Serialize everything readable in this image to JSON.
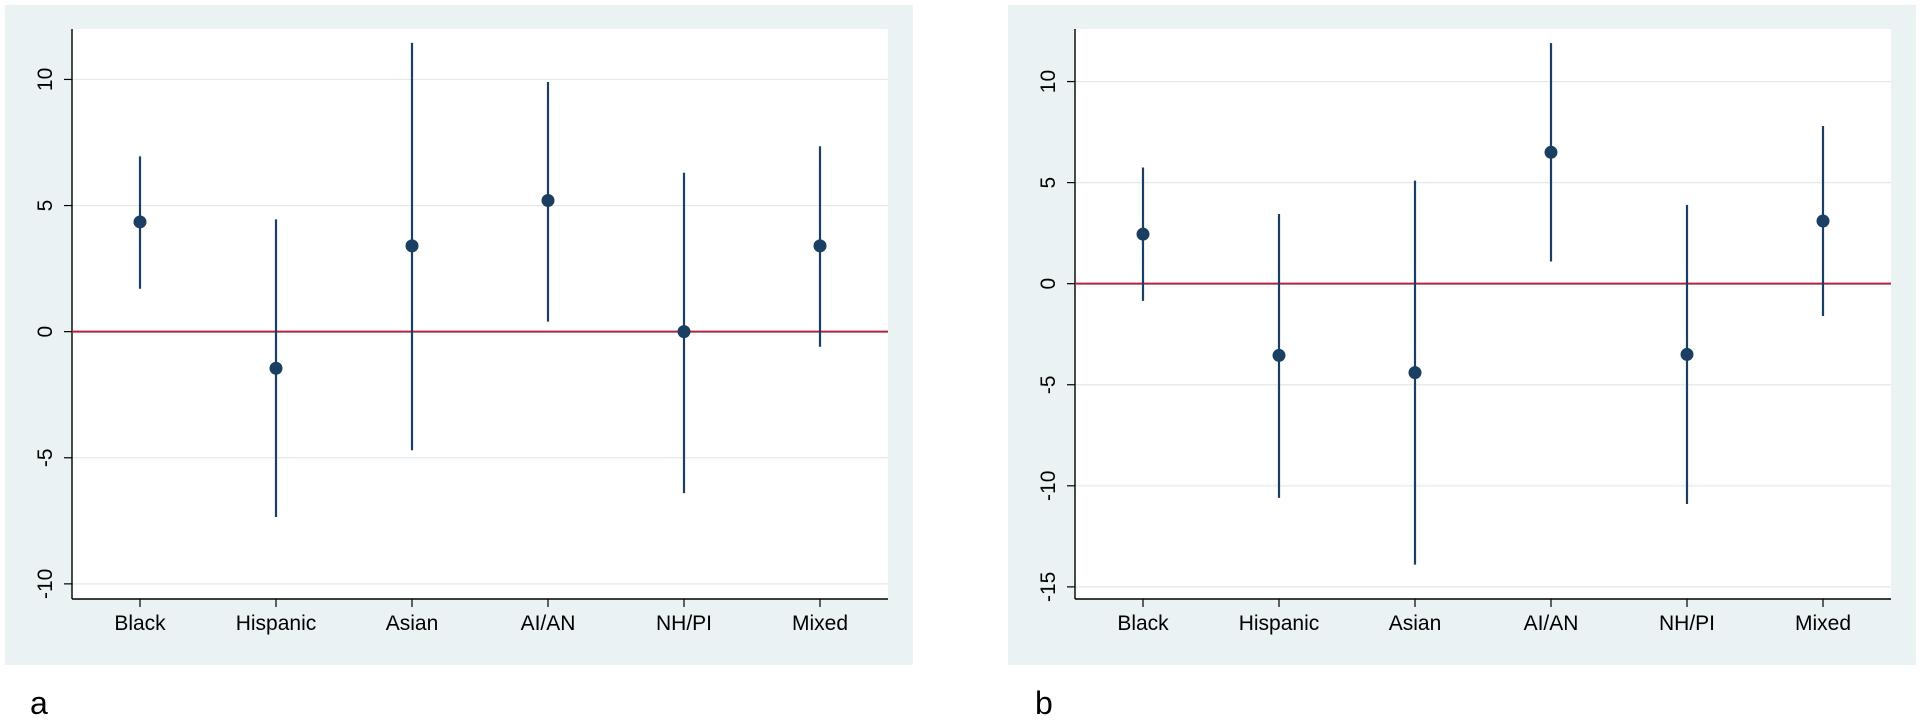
{
  "chart_data": [
    {
      "type": "scatter",
      "panel_label": "a",
      "categories": [
        "Black",
        "Hispanic",
        "Asian",
        "AI/AN",
        "NH/PI",
        "Mixed"
      ],
      "estimates": [
        4.35,
        -1.45,
        3.4,
        5.2,
        0.0,
        3.4
      ],
      "ci_lower": [
        1.7,
        -7.35,
        -4.7,
        0.4,
        -6.4,
        -0.6
      ],
      "ci_upper": [
        6.95,
        4.45,
        11.45,
        9.9,
        6.3,
        7.35
      ],
      "reference_line": 0,
      "yticks": [
        -10,
        -5,
        0,
        5,
        10
      ],
      "ylim": [
        -10.6,
        12.0
      ],
      "title": "",
      "xlabel": "",
      "ylabel": "",
      "colors": {
        "marker": "#1b3f63",
        "reference": "#b0233f",
        "grid": "#e3e9eb",
        "background": "#eaf2f3",
        "plot": "#ffffff"
      }
    },
    {
      "type": "scatter",
      "panel_label": "b",
      "categories": [
        "Black",
        "Hispanic",
        "Asian",
        "AI/AN",
        "NH/PI",
        "Mixed"
      ],
      "estimates": [
        2.45,
        -3.55,
        -4.4,
        6.5,
        -3.5,
        3.1
      ],
      "ci_lower": [
        -0.85,
        -10.6,
        -13.9,
        1.1,
        -10.9,
        -1.6
      ],
      "ci_upper": [
        5.75,
        3.45,
        5.1,
        11.9,
        3.9,
        7.8
      ],
      "reference_line": 0,
      "yticks": [
        -15,
        -10,
        -5,
        0,
        5,
        10
      ],
      "ylim": [
        -15.6,
        12.6
      ],
      "title": "",
      "xlabel": "",
      "ylabel": "",
      "colors": {
        "marker": "#1b3f63",
        "reference": "#b0233f",
        "grid": "#e3e9eb",
        "background": "#eaf2f3",
        "plot": "#ffffff"
      }
    }
  ]
}
